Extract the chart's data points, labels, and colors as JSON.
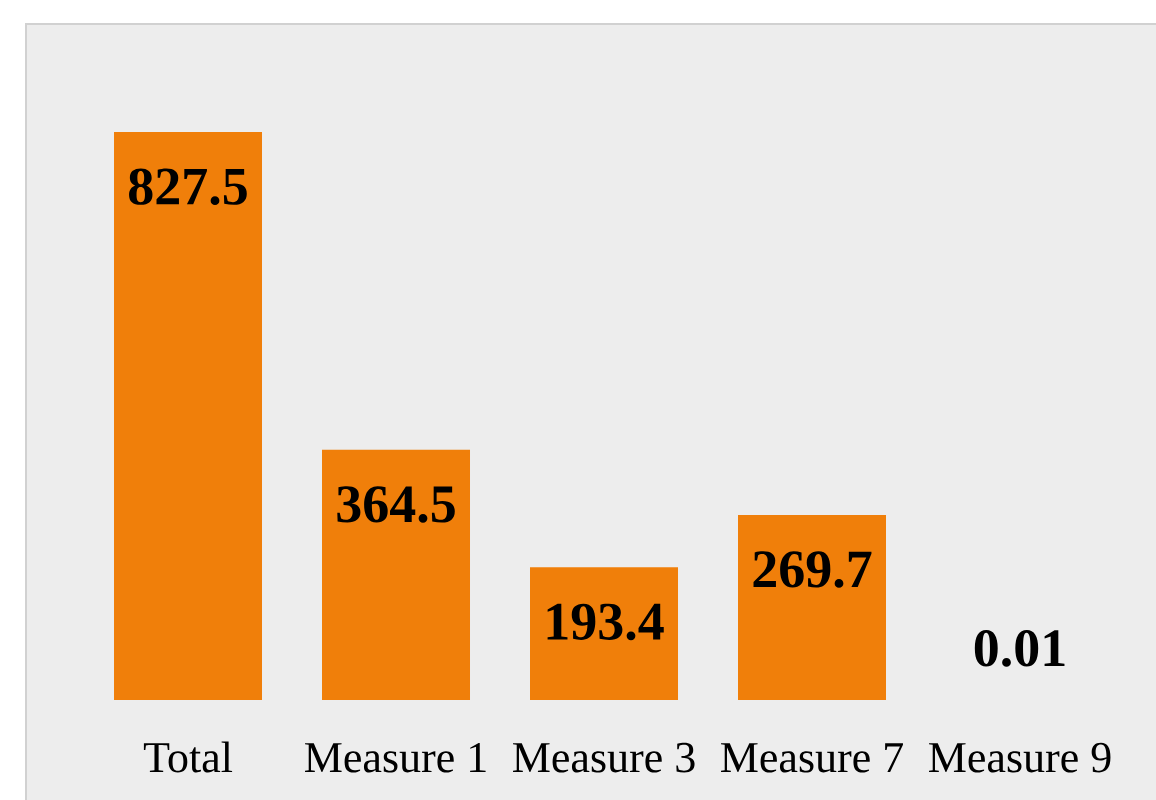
{
  "chart_data": {
    "type": "bar",
    "categories": [
      "Total",
      "Measure 1",
      "Measure 3",
      "Measure 7",
      "Measure 9"
    ],
    "values": [
      827.5,
      364.5,
      193.4,
      269.7,
      0.01
    ],
    "color": "#f07f0a",
    "data_labels": true,
    "tick_labels": "x"
  }
}
